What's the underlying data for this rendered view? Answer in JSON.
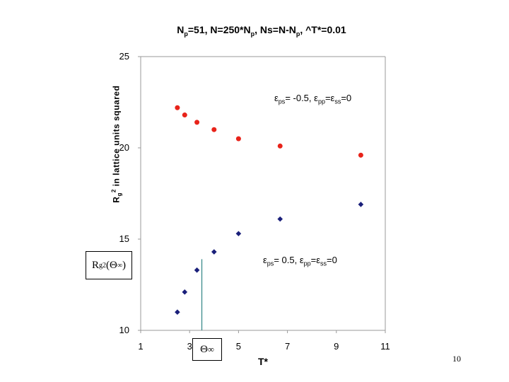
{
  "chart_data": {
    "type": "scatter",
    "title_parts": [
      "N",
      "p",
      "=51, N=250*N",
      "p",
      ", Ns=N-N",
      "p",
      ", ^T*=0.01"
    ],
    "xlabel": "T*",
    "ylabel_parts": [
      "R",
      "g",
      "2",
      " in lattice units squared"
    ],
    "xlim": [
      1,
      11
    ],
    "ylim": [
      10,
      25
    ],
    "x_ticks": [
      "1",
      "3",
      "5",
      "7",
      "9",
      "11"
    ],
    "y_ticks": [
      "10",
      "15",
      "20",
      "25"
    ],
    "grid": false,
    "series": [
      {
        "color": "#e8231a",
        "marker": "circle",
        "x": [
          2.5,
          2.8,
          3.3,
          4.0,
          5.0,
          6.7,
          10.0
        ],
        "y": [
          22.2,
          21.8,
          21.4,
          21.0,
          20.5,
          20.1,
          19.6
        ]
      },
      {
        "color": "#1a1f7a",
        "marker": "diamond",
        "x": [
          2.5,
          2.8,
          3.3,
          4.0,
          5.0,
          6.7,
          10.0
        ],
        "y": [
          11.0,
          12.1,
          13.3,
          14.3,
          15.3,
          16.1,
          16.9
        ]
      }
    ],
    "theta_line": {
      "x": 3.5,
      "y_top": 13.9,
      "color": "#3a8a8a"
    }
  },
  "annotations": {
    "top": {
      "eps": "ε",
      "sub1": "ps",
      "t1": "= -0.5, ",
      "eps2": "ε",
      "sub2": "pp",
      "t2": "=",
      "eps3": "ε",
      "sub3": "ss",
      "t3": "=0"
    },
    "bottom": {
      "eps": "ε",
      "sub1": "ps",
      "t1": "= 0.5, ",
      "eps2": "ε",
      "sub2": "pp",
      "t2": "=",
      "eps3": "ε",
      "sub3": "ss",
      "t3": "=0"
    }
  },
  "rg_box": {
    "main": "R",
    "sub": "g",
    "sup": "2",
    "rest": "(Θ",
    "inf": "∞",
    "close": ")"
  },
  "theta_box": {
    "sym": "Θ",
    "sub": "∞"
  },
  "page_number": "10"
}
